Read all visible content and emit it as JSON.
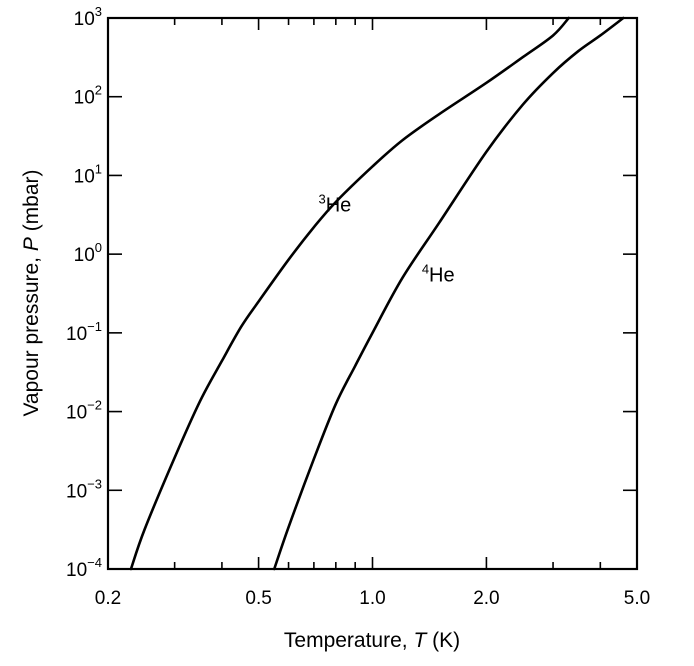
{
  "chart_data": {
    "type": "line",
    "x_scale": "log",
    "y_scale": "log",
    "xlim": [
      0.2,
      5.0
    ],
    "ylim": [
      0.0001,
      1000
    ],
    "xlabel": {
      "main": "Temperature, ",
      "italic": "T",
      "unit": " (K)"
    },
    "ylabel": {
      "main": "Vapour pressure, ",
      "italic": "P",
      "unit": " (mbar)"
    },
    "x_ticks": [
      {
        "value": 0.2,
        "label": "0.2"
      },
      {
        "value": 0.5,
        "label": "0.5"
      },
      {
        "value": 1.0,
        "label": "1.0"
      },
      {
        "value": 2.0,
        "label": "2.0"
      },
      {
        "value": 5.0,
        "label": "5.0"
      }
    ],
    "x_minor_ticks": [
      0.3,
      0.4,
      0.6,
      0.7,
      0.8,
      0.9,
      3.0,
      4.0
    ],
    "y_ticks": [
      {
        "value": 0.0001,
        "base": "10",
        "exp": "−4"
      },
      {
        "value": 0.001,
        "base": "10",
        "exp": "−3"
      },
      {
        "value": 0.01,
        "base": "10",
        "exp": "−2"
      },
      {
        "value": 0.1,
        "base": "10",
        "exp": "−1"
      },
      {
        "value": 1,
        "base": "10",
        "exp": "0"
      },
      {
        "value": 10,
        "base": "10",
        "exp": "1"
      },
      {
        "value": 100,
        "base": "10",
        "exp": "2"
      },
      {
        "value": 1000,
        "base": "10",
        "exp": "3"
      }
    ],
    "grid": false,
    "series": [
      {
        "name_sup": "3",
        "name_text": "He",
        "label_at": {
          "x": 0.72,
          "y": 3.5
        },
        "x": [
          0.23,
          0.25,
          0.3,
          0.35,
          0.4,
          0.45,
          0.5,
          0.6,
          0.7,
          0.8,
          1.0,
          1.2,
          1.5,
          2.0,
          2.5,
          3.0,
          3.3
        ],
        "y": [
          0.0001,
          0.00032,
          0.0026,
          0.0135,
          0.044,
          0.12,
          0.25,
          0.85,
          2.2,
          4.6,
          13,
          28,
          60,
          150,
          320,
          600,
          1000
        ]
      },
      {
        "name_sup": "4",
        "name_text": "He",
        "label_at": {
          "x": 1.35,
          "y": 0.45
        },
        "x": [
          0.55,
          0.6,
          0.7,
          0.8,
          0.9,
          1.0,
          1.2,
          1.5,
          2.0,
          2.5,
          3.0,
          3.5,
          4.0,
          4.6
        ],
        "y": [
          0.0001,
          0.00034,
          0.0025,
          0.0125,
          0.038,
          0.1,
          0.5,
          2.5,
          20,
          80,
          200,
          380,
          600,
          1000
        ]
      }
    ]
  }
}
